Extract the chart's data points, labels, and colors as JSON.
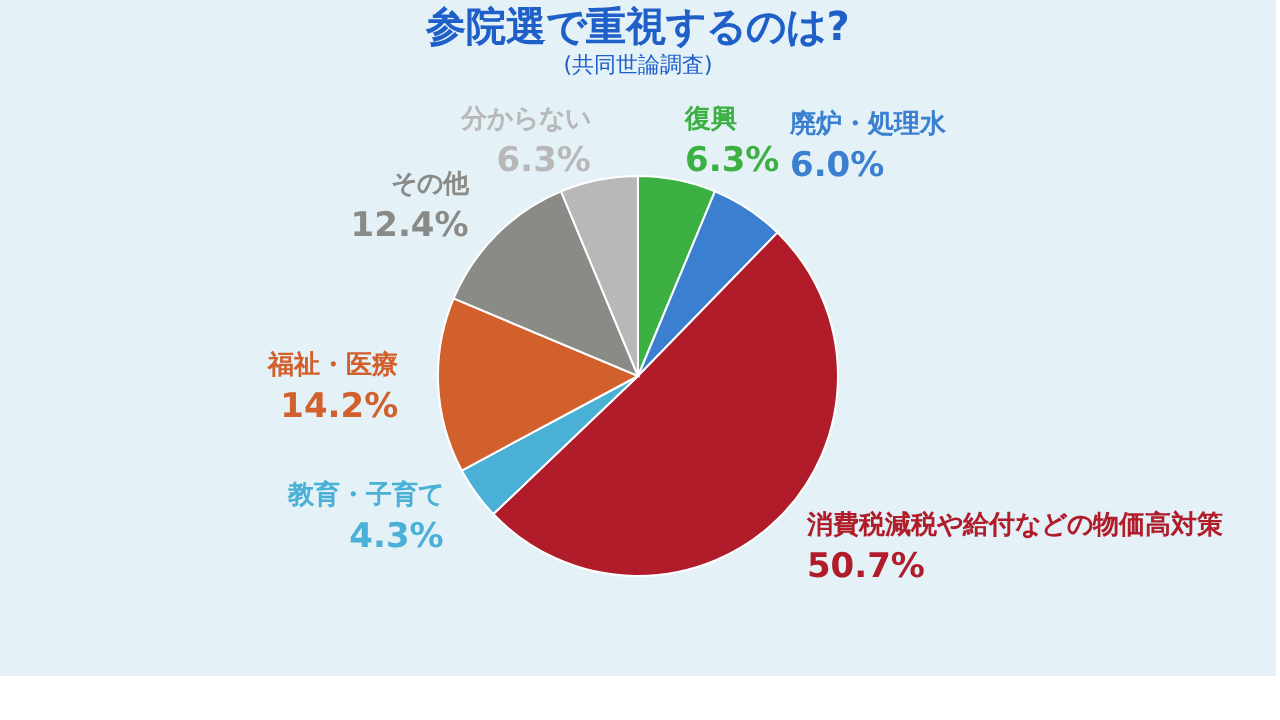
{
  "chart_data": {
    "type": "pie",
    "title": "参院選で重視するのは?",
    "subtitle": "(共同世論調査)",
    "categories": [
      "復興",
      "廃炉・処理水",
      "消費税減税や給付などの物価高対策",
      "教育・子育て",
      "福祉・医療",
      "その他",
      "分からない"
    ],
    "values": [
      6.3,
      6.0,
      50.7,
      4.3,
      14.2,
      12.4,
      6.3
    ],
    "value_labels": [
      "6.3%",
      "6.0%",
      "50.7%",
      "4.3%",
      "14.2%",
      "12.4%",
      "6.3%"
    ],
    "colors": [
      "#3cb043",
      "#3a7fd0",
      "#b01c2a",
      "#4ab0d6",
      "#d2602c",
      "#8a8a86",
      "#b8b8b8"
    ],
    "legend": false
  }
}
